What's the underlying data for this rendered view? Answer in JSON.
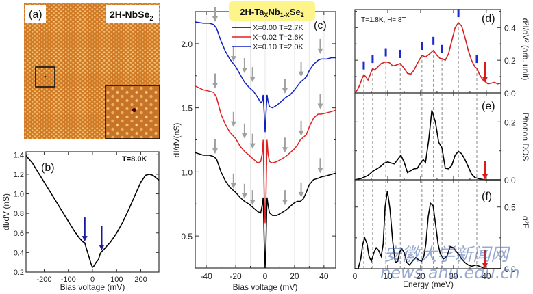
{
  "watermark": {
    "line1": "安徽大学新闻网",
    "line2": "news.ahu.edu.cn"
  },
  "chart_data": [
    {
      "panel": "(a)",
      "type": "image",
      "label": "(a)",
      "title": "2H-NbSe",
      "title_sub": "2",
      "description": "STM topography with atomic lattice; small boxed region magnified in lower-right inset showing a dark defect"
    },
    {
      "panel": "(b)",
      "type": "line",
      "label": "(b)",
      "annotation": "T=8.0K",
      "xlabel": "Bias voltage (mV)",
      "ylabel": "dI/dV (nS)",
      "xlim": [
        -275,
        275
      ],
      "ylim": [
        0.2,
        1.43
      ],
      "xticks": [
        -200,
        -100,
        0,
        100,
        200
      ],
      "yticks": [
        0.2,
        0.4,
        0.6,
        0.8,
        1.0,
        1.2,
        1.4
      ],
      "xtick_labels": [
        "-200",
        "-100",
        "0",
        "100",
        "200"
      ],
      "ytick_labels": [
        "0.2",
        "0.4",
        "0.6",
        "0.8",
        "1.0",
        "1.2",
        "1.4"
      ],
      "series": [
        {
          "name": "T=8.0K",
          "color": "#000000",
          "x": [
            -275,
            -250,
            -225,
            -200,
            -175,
            -150,
            -125,
            -100,
            -75,
            -55,
            -40,
            -32,
            -25,
            -15,
            -5,
            0,
            5,
            15,
            25,
            32,
            38,
            50,
            75,
            100,
            125,
            150,
            175,
            200,
            220,
            235,
            250,
            265,
            275
          ],
          "y": [
            1.39,
            1.32,
            1.22,
            1.12,
            1.02,
            0.92,
            0.82,
            0.72,
            0.62,
            0.55,
            0.51,
            0.5,
            0.44,
            0.36,
            0.28,
            0.25,
            0.26,
            0.3,
            0.33,
            0.39,
            0.41,
            0.44,
            0.51,
            0.6,
            0.71,
            0.84,
            0.98,
            1.12,
            1.19,
            1.2,
            1.19,
            1.16,
            1.14
          ]
        }
      ],
      "arrows": [
        {
          "x": -32,
          "color": "#1a1a9a"
        },
        {
          "x": 38,
          "color": "#1a1a9a"
        }
      ]
    },
    {
      "panel": "(c)",
      "type": "line",
      "label": "(c)",
      "title": "2H-Ta",
      "title_parts": [
        "2H-Ta",
        "X",
        "Nb",
        "1-X",
        "Se",
        "2"
      ],
      "xlabel": "Bias voltage (mV)",
      "ylabel": "dI/dV(nS)",
      "xlim": [
        -47.5,
        48
      ],
      "ylim": [
        0.25,
        2.25
      ],
      "xticks": [
        -40,
        -20,
        0,
        20,
        40
      ],
      "xtick_labels": [
        "-40",
        "-20",
        "0",
        "20",
        "40"
      ],
      "yticks": [
        0.5,
        1.0,
        1.5,
        2.0
      ],
      "ytick_labels": [
        "0.5",
        "1.0",
        "1.5",
        "2.0"
      ],
      "grid_x": [
        -40,
        -30,
        -20,
        -10,
        0,
        10,
        20,
        30,
        40
      ],
      "legend": [
        {
          "label": "X=0.00 T=2.7K",
          "color": "#000000"
        },
        {
          "label": "X=0.02 T=2.6K",
          "color": "#e02020"
        },
        {
          "label": "X=0.10 T=2.0K",
          "color": "#1020c0"
        }
      ],
      "series": [
        {
          "name": "X=0.00 T=2.7K",
          "color": "#000000",
          "x": [
            -47.5,
            -42,
            -38,
            -35,
            -33,
            -30,
            -27,
            -24,
            -20,
            -17,
            -14,
            -11,
            -8,
            -5,
            -3,
            -2,
            -1.3,
            -0.6,
            0,
            0.6,
            1.3,
            2,
            3,
            5,
            8,
            11,
            14,
            17,
            20,
            22,
            24,
            26,
            28,
            30,
            33,
            36,
            38,
            42,
            45,
            48
          ],
          "y": [
            1.15,
            1.13,
            1.13,
            1.12,
            1.1,
            1.0,
            0.93,
            0.88,
            0.84,
            0.8,
            0.77,
            0.75,
            0.72,
            0.69,
            0.68,
            0.74,
            0.8,
            0.45,
            0.25,
            0.45,
            0.8,
            0.74,
            0.68,
            0.66,
            0.66,
            0.68,
            0.7,
            0.73,
            0.76,
            0.77,
            0.77,
            0.79,
            0.84,
            0.9,
            0.94,
            0.95,
            0.96,
            0.97,
            0.98,
            0.99
          ]
        },
        {
          "name": "X=0.02 T=2.6K",
          "color": "#e02020",
          "x": [
            -47.5,
            -42,
            -38,
            -35,
            -33,
            -30,
            -27,
            -24,
            -20,
            -17,
            -14,
            -11,
            -8,
            -5,
            -3,
            -2,
            -1.3,
            -0.6,
            0,
            0.6,
            1.3,
            2,
            3,
            5,
            8,
            11,
            14,
            17,
            20,
            22,
            24,
            26,
            28,
            30,
            33,
            36,
            38,
            42,
            45,
            48
          ],
          "y": [
            1.67,
            1.64,
            1.63,
            1.62,
            1.58,
            1.45,
            1.37,
            1.31,
            1.26,
            1.2,
            1.16,
            1.13,
            1.1,
            1.07,
            1.08,
            1.14,
            1.25,
            0.8,
            0.6,
            0.8,
            1.25,
            1.14,
            1.08,
            1.07,
            1.08,
            1.1,
            1.12,
            1.15,
            1.18,
            1.21,
            1.25,
            1.27,
            1.29,
            1.35,
            1.42,
            1.45,
            1.45,
            1.46,
            1.47,
            1.48
          ]
        },
        {
          "name": "X=0.10 T=2.0K",
          "color": "#1020c0",
          "x": [
            -47.5,
            -42,
            -38,
            -35,
            -33,
            -30,
            -27,
            -24,
            -20,
            -17,
            -14,
            -11,
            -8,
            -5,
            -3,
            -2,
            -1.3,
            -0.6,
            0,
            0.6,
            1.3,
            2,
            3,
            5,
            8,
            11,
            14,
            17,
            20,
            22,
            24,
            26,
            28,
            30,
            33,
            36,
            38,
            42,
            45,
            48
          ],
          "y": [
            2.17,
            2.16,
            2.16,
            2.15,
            2.12,
            2.02,
            1.94,
            1.88,
            1.82,
            1.76,
            1.7,
            1.66,
            1.63,
            1.58,
            1.54,
            1.55,
            1.6,
            1.45,
            1.31,
            1.45,
            1.6,
            1.55,
            1.51,
            1.5,
            1.52,
            1.55,
            1.58,
            1.6,
            1.64,
            1.67,
            1.7,
            1.72,
            1.74,
            1.79,
            1.84,
            1.87,
            1.88,
            1.88,
            1.89,
            1.89
          ]
        }
      ],
      "arrows": [
        {
          "x": -34,
          "y": 2.17
        },
        {
          "x": -21.5,
          "y": 1.86
        },
        {
          "x": -14,
          "y": 1.77
        },
        {
          "x": -8.5,
          "y": 1.7
        },
        {
          "x": 13.5,
          "y": 1.61
        },
        {
          "x": 24.5,
          "y": 1.74
        },
        {
          "x": 37.5,
          "y": 1.92
        },
        {
          "x": -34,
          "y": 1.65
        },
        {
          "x": -21.5,
          "y": 1.35
        },
        {
          "x": -14,
          "y": 1.26
        },
        {
          "x": -8.5,
          "y": 1.18
        },
        {
          "x": 13.5,
          "y": 1.15
        },
        {
          "x": 24.5,
          "y": 1.28
        },
        {
          "x": 37.5,
          "y": 1.49
        },
        {
          "x": -34,
          "y": 1.14
        },
        {
          "x": -21.5,
          "y": 0.87
        },
        {
          "x": -14,
          "y": 0.79
        },
        {
          "x": -8.5,
          "y": 0.74
        },
        {
          "x": 13.5,
          "y": 0.74
        },
        {
          "x": 24.5,
          "y": 0.8
        },
        {
          "x": 37.5,
          "y": 0.99
        }
      ]
    },
    {
      "panel": "(d)",
      "type": "line",
      "label": "(d)",
      "annotation": "T=1.8K, H= 8T",
      "ylabel": "d²I/dV² (arb. unit)",
      "xlim": [
        0,
        44.4
      ],
      "ylim": [
        0.0,
        0.51
      ],
      "yticks": [
        0.0,
        0.2,
        0.4
      ],
      "ytick_labels": [
        "0.0",
        "0.2",
        "0.4"
      ],
      "series": [
        {
          "name": "d2I/dV2",
          "color": "#d42020",
          "x": [
            0,
            0.8,
            1.5,
            2.2,
            2.7,
            3.3,
            4,
            4.8,
            5.4,
            6,
            7,
            8,
            9.4,
            10.5,
            11.5,
            12.5,
            13.8,
            15,
            16,
            17,
            18,
            19,
            20.4,
            21.5,
            22.8,
            23.9,
            25,
            26,
            26.5,
            27.5,
            28.5,
            29.5,
            30.5,
            31.5,
            32.5,
            33.5,
            34.5,
            35.5,
            36.5,
            37.1,
            38,
            39,
            39.6,
            40.5,
            41.5,
            42.5,
            43.5,
            44.4
          ],
          "y": [
            0.0,
            0.02,
            0.05,
            0.09,
            0.11,
            0.1,
            0.08,
            0.12,
            0.15,
            0.14,
            0.16,
            0.18,
            0.19,
            0.185,
            0.165,
            0.17,
            0.18,
            0.15,
            0.12,
            0.115,
            0.14,
            0.18,
            0.23,
            0.22,
            0.24,
            0.26,
            0.23,
            0.21,
            0.21,
            0.2,
            0.24,
            0.32,
            0.4,
            0.43,
            0.41,
            0.34,
            0.26,
            0.2,
            0.16,
            0.15,
            0.11,
            0.08,
            0.07,
            0.055,
            0.06,
            0.065,
            0.055,
            0.06
          ]
        }
      ],
      "markers_blue": [
        2.7,
        5.4,
        9.4,
        13.8,
        20.4,
        23.9,
        26.5,
        31.5,
        37.1
      ],
      "red_arrow_x": 39.6
    },
    {
      "panel": "(e)",
      "type": "line",
      "label": "(e)",
      "ylabel": "Phonon DOS",
      "xlim": [
        0,
        44.4
      ],
      "ylim": [
        0.0,
        0.3
      ],
      "yticks": [
        0.0,
        0.2
      ],
      "ytick_labels": [
        "0.0",
        "0.2"
      ],
      "series": [
        {
          "name": "Phonon DOS",
          "color": "#000000",
          "x": [
            0,
            2,
            4,
            5.5,
            7,
            8,
            9,
            10,
            11,
            12,
            13,
            14,
            15,
            16,
            17,
            18,
            19,
            20,
            20.8,
            21.5,
            22.5,
            23.4,
            24.5,
            25.5,
            26.5,
            27.5,
            28.5,
            29.5,
            30.5,
            31.5,
            32.5,
            33.5,
            34.5,
            35.5,
            36.5,
            38,
            39.6,
            44.4
          ],
          "y": [
            0.0,
            0.005,
            0.015,
            0.03,
            0.04,
            0.048,
            0.058,
            0.062,
            0.058,
            0.055,
            0.07,
            0.085,
            0.06,
            0.025,
            0.032,
            0.038,
            0.04,
            0.058,
            0.07,
            0.06,
            0.14,
            0.24,
            0.2,
            0.13,
            0.11,
            0.04,
            0.038,
            0.05,
            0.085,
            0.098,
            0.09,
            0.07,
            0.045,
            0.02,
            0.008,
            0.003,
            0.0,
            0.0
          ]
        }
      ],
      "dashed_x": [
        2.7,
        5.4,
        9.4,
        13.8,
        20.4,
        23.9,
        26.5,
        31.5,
        37.1
      ],
      "red_arrow_x": 39.6
    },
    {
      "panel": "(f)",
      "type": "line",
      "label": "(f)",
      "xlabel": "Energy (meV)",
      "ylabel": "α²F",
      "xlim": [
        0,
        44.4
      ],
      "ylim": [
        0.0,
        0.72
      ],
      "xticks": [
        0,
        10,
        20,
        30,
        40
      ],
      "xtick_labels": [
        "0",
        "10",
        "20",
        "30",
        "40"
      ],
      "yticks": [
        0.0,
        0.5
      ],
      "ytick_labels": [
        "0.0",
        "0.5"
      ],
      "series": [
        {
          "name": "alpha2F",
          "color": "#000000",
          "x": [
            0,
            1,
            1.8,
            2.4,
            3,
            3.7,
            4.3,
            5,
            5.8,
            6.5,
            7.2,
            8,
            8.6,
            9.2,
            9.9,
            10.7,
            11.5,
            12.3,
            13,
            13.7,
            14.3,
            15,
            15.8,
            16.6,
            17.5,
            18.5,
            19.5,
            20.3,
            21,
            21.6,
            22.3,
            23,
            23.8,
            24.6,
            25.3,
            26,
            27,
            28,
            29,
            30,
            30.8,
            31.5,
            32.5,
            33.5,
            34.5,
            35.5,
            36.2,
            37,
            38,
            39,
            39.6,
            41,
            44.4
          ],
          "y": [
            0.0,
            0.0,
            0.08,
            0.2,
            0.25,
            0.2,
            0.1,
            0.06,
            0.13,
            0.17,
            0.15,
            0.1,
            0.2,
            0.5,
            0.63,
            0.48,
            0.22,
            0.05,
            0.06,
            0.14,
            0.16,
            0.13,
            0.05,
            0.03,
            0.06,
            0.09,
            0.07,
            0.06,
            0.1,
            0.2,
            0.42,
            0.53,
            0.51,
            0.35,
            0.2,
            0.12,
            0.08,
            0.1,
            0.18,
            0.17,
            0.14,
            0.12,
            0.08,
            0.05,
            0.03,
            0.02,
            0.025,
            0.03,
            0.018,
            0.008,
            0.0,
            0.0,
            0.0
          ]
        }
      ],
      "dashed_x": [
        2.7,
        5.4,
        9.4,
        13.8,
        20.4,
        23.9,
        26.5,
        31.5,
        37.1
      ],
      "red_arrow_x": 39.6
    }
  ]
}
